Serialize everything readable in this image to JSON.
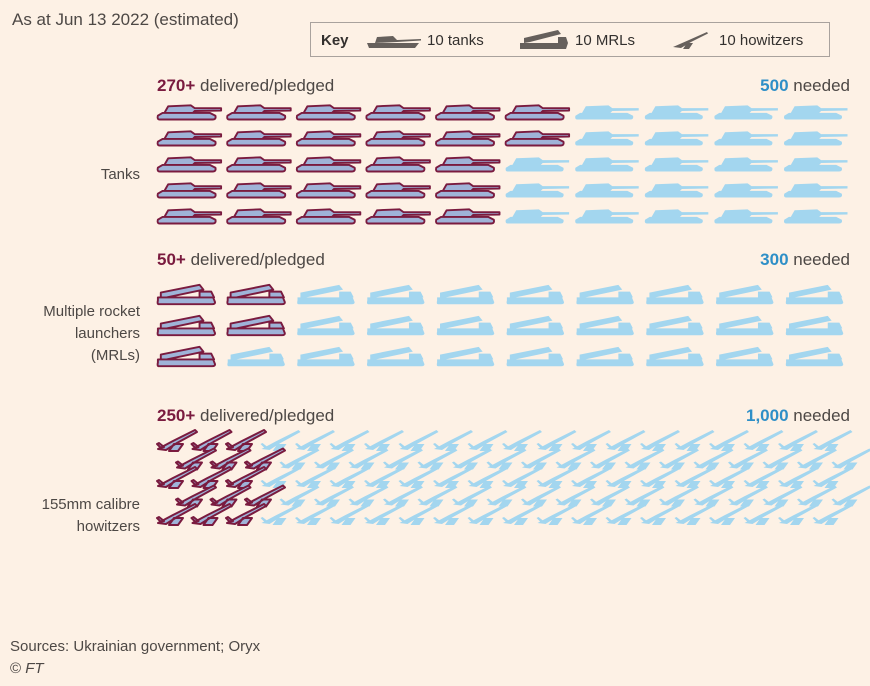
{
  "subtitle": "As at Jun 13 2022 (estimated)",
  "key": {
    "title": "Key",
    "tanks_label": "10 tanks",
    "mrls_label": "10 MRLs",
    "howitzers_label": "10 howitzers"
  },
  "colors": {
    "delivered_fill": "#9fb3d8",
    "delivered_stroke": "#7a1b3f",
    "needed_fill": "#a3d6ef",
    "delivered_text": "#7a1b3f",
    "needed_text": "#2e8fc7",
    "key_icon": "#66605c",
    "background": "#fdf1e5"
  },
  "chart_data": {
    "type": "pictogram",
    "unit": 10,
    "categories": [
      {
        "name": "Tanks",
        "label_lines": [
          "Tanks"
        ],
        "icon": "tank-icon",
        "delivered_value": 270,
        "needed_value": 500,
        "delivered_text": "270+",
        "delivered_suffix": "delivered/pledged",
        "needed_text": "500",
        "needed_suffix": "needed"
      },
      {
        "name": "Multiple rocket launchers (MRLs)",
        "label_lines": [
          "Multiple rocket",
          "launchers",
          "(MRLs)"
        ],
        "icon": "mrl-icon",
        "delivered_value": 50,
        "needed_value": 300,
        "delivered_text": "50+",
        "delivered_suffix": "delivered/pledged",
        "needed_text": "300",
        "needed_suffix": "needed"
      },
      {
        "name": "155mm calibre howitzers",
        "label_lines": [
          "155mm calibre",
          "howitzers"
        ],
        "icon": "howitzer-icon",
        "delivered_value": 250,
        "needed_value": 1000,
        "delivered_text": "250+",
        "delivered_suffix": "delivered/pledged",
        "needed_text": "1,000",
        "needed_suffix": "needed"
      }
    ]
  },
  "footer": {
    "sources": "Sources: Ukrainian government; Oryx",
    "credit_symbol": "©",
    "credit_name": "FT"
  }
}
